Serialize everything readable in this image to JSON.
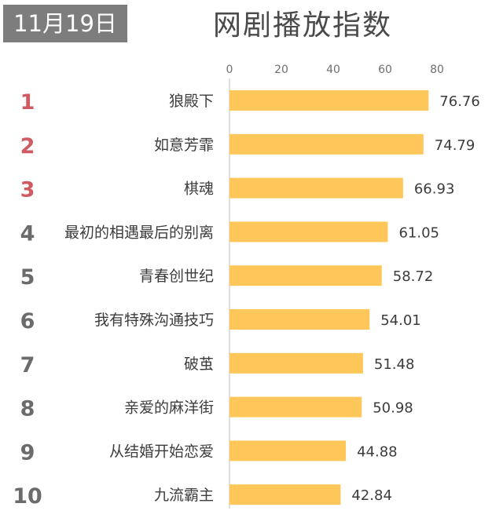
{
  "header": {
    "date": "11月19日",
    "title": "网剧播放指数"
  },
  "chart_data": {
    "type": "bar",
    "orientation": "horizontal",
    "title": "网剧播放指数",
    "xlabel": "",
    "ylabel": "",
    "xlim": [
      0,
      80
    ],
    "ticks": [
      0,
      20,
      40,
      60,
      80
    ],
    "ticks_position": "top",
    "grid": false,
    "ranks": [
      "1",
      "2",
      "3",
      "4",
      "5",
      "6",
      "7",
      "8",
      "9",
      "10"
    ],
    "categories": [
      "狼殿下",
      "如意芳霏",
      "棋魂",
      "最初的相遇最后的别离",
      "青春创世纪",
      "我有特殊沟通技巧",
      "破茧",
      "亲爱的麻洋街",
      "从结婚开始恋爱",
      "九流霸主"
    ],
    "values": [
      76.76,
      74.79,
      66.93,
      61.05,
      58.72,
      54.01,
      51.48,
      50.98,
      44.88,
      42.84
    ],
    "value_labels": [
      "76.76",
      "74.79",
      "66.93",
      "61.05",
      "58.72",
      "54.01",
      "51.48",
      "50.98",
      "44.88",
      "42.84"
    ]
  },
  "colors": {
    "bar": "#ffc75a",
    "axis": "#bfbfbf",
    "rank_top3": "#cf5a62",
    "rank_rest": "#6b6b6b",
    "badge": "#7d7d7d"
  }
}
